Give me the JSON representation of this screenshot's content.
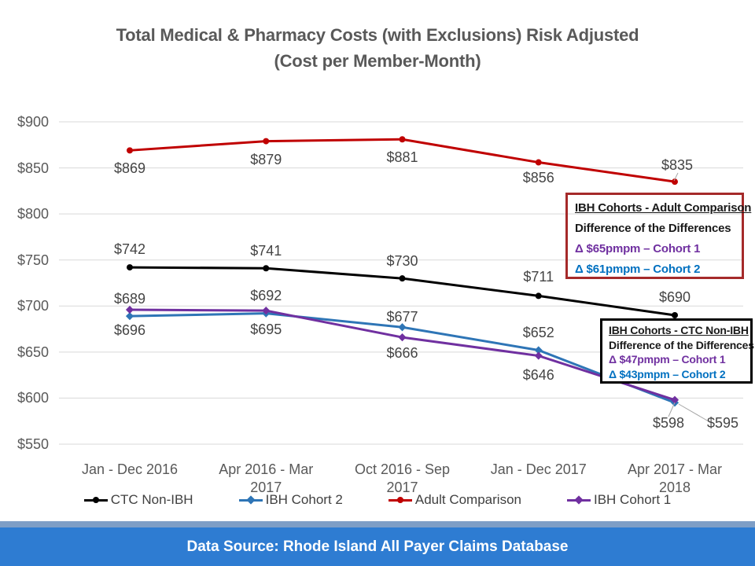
{
  "title": {
    "line1": "Total Medical & Pharmacy Costs (with Exclusions) Risk Adjusted",
    "line2": "(Cost per Member-Month)"
  },
  "chart_data": {
    "type": "line",
    "categories": [
      [
        "Jan - Dec 2016"
      ],
      [
        "Apr 2016 - Mar",
        "2017"
      ],
      [
        "Oct 2016 - Sep",
        "2017"
      ],
      [
        "Jan - Dec 2017"
      ],
      [
        "Apr 2017 - Mar",
        "2018"
      ]
    ],
    "series": [
      {
        "name": "Adult Comparison",
        "color": "#C00000",
        "marker": "circle",
        "values": [
          869,
          879,
          881,
          856,
          835
        ]
      },
      {
        "name": "CTC Non-IBH",
        "color": "#000000",
        "marker": "circle",
        "values": [
          742,
          741,
          730,
          711,
          690
        ]
      },
      {
        "name": "IBH Cohort 2",
        "color": "#2E75B6",
        "marker": "diamond",
        "values": [
          689,
          692,
          677,
          652,
          595
        ]
      },
      {
        "name": "IBH Cohort 1",
        "color": "#7030A0",
        "marker": "diamond",
        "values": [
          696,
          695,
          666,
          646,
          598
        ]
      }
    ],
    "data_label_prefix": "$",
    "ylim": [
      550,
      900
    ],
    "ytick_step": 50,
    "ytick_prefix": "$",
    "grid": true,
    "gridline_color": "#D9D9D9",
    "legend_position": "bottom",
    "legend": [
      "CTC Non-IBH",
      "IBH Cohort 2",
      "Adult Comparison",
      "IBH Cohort 1"
    ]
  },
  "annotations": {
    "adult": {
      "title": "IBH Cohorts - Adult Comparison",
      "subtitle": "Difference of the Differences",
      "cohort1": "Δ $65pmpm – Cohort 1",
      "cohort2": "Δ $61pmpm – Cohort 2",
      "border_color": "#A52A2A"
    },
    "ctc": {
      "title": "IBH Cohorts - CTC Non-IBH",
      "subtitle": "Difference of the Differences",
      "cohort1": "Δ $47pmpm – Cohort 1",
      "cohort2": "Δ $43pmpm – Cohort 2",
      "border_color": "#000000"
    }
  },
  "footer": {
    "text": "Data Source: Rhode Island All Payer Claims Database",
    "bar_color": "#2E7CD2",
    "strip_color": "#7E9EC6"
  }
}
